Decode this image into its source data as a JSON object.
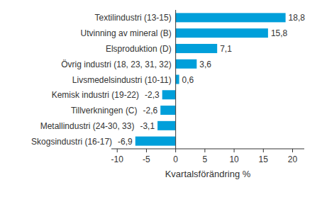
{
  "chart_data": {
    "type": "bar",
    "orientation": "horizontal",
    "categories": [
      "Textilindustri (13-15)",
      "Utvinning av mineral (B)",
      "Elsproduktion (D)",
      "Övrig industri (18, 23, 31, 32)",
      "Livsmedelsindustri (10-11)",
      "Kemisk industri (19-22)",
      "Tillverkningen (C)",
      "Metallindustri (24-30, 33)",
      "Skogsindustri (16-17)"
    ],
    "values": [
      18.8,
      15.8,
      7.1,
      3.6,
      0.6,
      -2.3,
      -2.6,
      -3.1,
      -6.9
    ],
    "value_labels": [
      "18,8",
      "15,8",
      "7,1",
      "3,6",
      "0,6",
      "-2,3",
      "-2,6",
      "-3,1",
      "-6,9"
    ],
    "data_labels": true,
    "color": "#009fda",
    "x_label": "Kvartalsförändring %",
    "xlim": [
      -11,
      22
    ],
    "xticks": [
      -10,
      -5,
      0,
      5,
      10,
      15,
      20
    ],
    "grid": false
  }
}
